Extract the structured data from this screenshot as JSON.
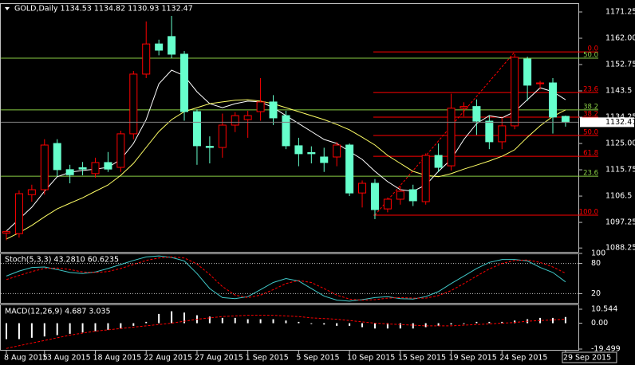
{
  "chart_data": [
    {
      "type": "candlestick",
      "title": "GOLD,Daily  1134.53 1134.82 1130.93 1132.47",
      "categories": [
        "8 Aug 2015",
        null,
        null,
        "13 Aug 2015",
        null,
        null,
        null,
        "18 Aug 2015",
        null,
        null,
        null,
        "22 Aug 2015",
        null,
        null,
        null,
        "27 Aug 2015",
        null,
        null,
        null,
        "1 Sep 2015",
        null,
        null,
        null,
        "5 Sep 2015",
        null,
        null,
        null,
        "10 Sep 2015",
        null,
        null,
        null,
        "15 Sep 2015",
        null,
        null,
        null,
        "19 Sep 2015",
        null,
        null,
        null,
        "24 Sep 2015",
        null,
        null,
        null,
        null,
        "29 Sep 2015"
      ],
      "open": [
        1093.5,
        1093.3,
        1107.0,
        1108.75,
        1125.0,
        1115.8,
        1116.5,
        1114.4,
        1118.3,
        1116.6,
        1128.4,
        1149.4,
        1160.0,
        1162.6,
        1156.4,
        1136.2,
        1124.0,
        1123.6,
        1131.45,
        1133.4,
        1136.2,
        1139.6,
        1134.8,
        1124.2,
        1121.8,
        1120.25,
        1120.25,
        1124.45,
        1107.6,
        1111.0,
        1102.0,
        1105.4,
        1108.75,
        1104.55,
        1120.8,
        1117.15,
        1137.4,
        1138.0,
        1132.85,
        1125.6,
        1131.2,
        1154.7,
        1146.0,
        1146.3,
        1134.53
      ],
      "high": [
        1094.5,
        1108.5,
        1110.5,
        1126.5,
        1126.5,
        1117.5,
        1118.5,
        1120.0,
        1122.0,
        1129.5,
        1150.5,
        1167.9,
        1161.5,
        1169.85,
        1157.5,
        1137.0,
        1127.5,
        1135.5,
        1136.0,
        1136.5,
        1148.0,
        1142.0,
        1136.5,
        1127.0,
        1124.0,
        1123.5,
        1125.5,
        1125.0,
        1112.0,
        1112.5,
        1106.0,
        1110.0,
        1110.5,
        1121.5,
        1125.0,
        1142.5,
        1139.5,
        1140.5,
        1135.0,
        1134.0,
        1156.5,
        1155.5,
        1147.0,
        1148.0,
        1134.82
      ],
      "low": [
        1091.0,
        1091.9,
        1104.5,
        1107.0,
        1113.5,
        1111.0,
        1113.8,
        1113.0,
        1115.0,
        1115.0,
        1126.5,
        1148.0,
        1156.0,
        1155.0,
        1133.0,
        1117.5,
        1118.0,
        1120.0,
        1129.0,
        1127.0,
        1133.0,
        1131.5,
        1123.0,
        1117.0,
        1118.0,
        1115.0,
        1117.0,
        1106.5,
        1102.5,
        1098.4,
        1100.8,
        1103.5,
        1103.0,
        1103.5,
        1115.0,
        1115.5,
        1134.5,
        1128.0,
        1123.0,
        1123.0,
        1130.0,
        1140.0,
        1144.0,
        1128.5,
        1130.93
      ],
      "close": [
        1094.0,
        1107.35,
        1108.75,
        1124.45,
        1115.8,
        1114.0,
        1116.0,
        1118.3,
        1116.0,
        1128.4,
        1149.4,
        1160.0,
        1157.8,
        1156.4,
        1136.2,
        1124.2,
        1123.6,
        1131.45,
        1134.8,
        1134.8,
        1139.6,
        1134.0,
        1124.2,
        1121.4,
        1121.4,
        1118.3,
        1124.45,
        1107.6,
        1111.0,
        1101.75,
        1105.4,
        1108.2,
        1104.85,
        1120.8,
        1116.6,
        1137.4,
        1138.0,
        1132.85,
        1125.6,
        1131.2,
        1155.3,
        1145.5,
        1146.3,
        1134.3,
        1132.47
      ],
      "up_color": "#ff0000",
      "down_color": "#66ffcc",
      "lines": [
        {
          "color": "#ffffff",
          "values": [
            1094.2,
            1098.4,
            1102.6,
            1108.2,
            1113.3,
            1114.9,
            1115.5,
            1116.0,
            1116.6,
            1119.4,
            1125.0,
            1133.4,
            1146.0,
            1150.8,
            1148.8,
            1143.2,
            1139.0,
            1137.6,
            1139.0,
            1139.9,
            1139.6,
            1137.6,
            1134.8,
            1132.0,
            1129.2,
            1126.4,
            1125.0,
            1122.2,
            1119.4,
            1115.2,
            1111.6,
            1108.75,
            1108.2,
            1110.4,
            1115.2,
            1119.4,
            1126.4,
            1132.0,
            1134.8,
            1134.0,
            1136.2,
            1140.4,
            1144.6,
            1143.2,
            1140.4
          ]
        },
        {
          "color": "#ffff66",
          "values": [
            1091.4,
            1093.6,
            1096.2,
            1099.2,
            1102.0,
            1104.0,
            1105.9,
            1108.2,
            1110.4,
            1113.8,
            1118.0,
            1123.6,
            1129.2,
            1133.4,
            1136.2,
            1137.6,
            1139.0,
            1139.6,
            1140.2,
            1140.4,
            1139.9,
            1139.0,
            1137.6,
            1136.2,
            1134.8,
            1133.4,
            1131.7,
            1129.8,
            1127.2,
            1124.45,
            1120.8,
            1118.0,
            1115.2,
            1113.8,
            1113.3,
            1114.4,
            1116.0,
            1117.4,
            1118.85,
            1120.5,
            1122.8,
            1127.2,
            1131.2,
            1134.5,
            1136.8
          ]
        }
      ],
      "fib_color": "#ff0000",
      "fib_levels": [
        {
          "label": "0.0",
          "value": 1157.2
        },
        {
          "label": "23.6",
          "value": 1142.9
        },
        {
          "label": "38.2",
          "value": 1134.25
        },
        {
          "label": "50.0",
          "value": 1127.8
        },
        {
          "label": "61.8",
          "value": 1120.5
        },
        {
          "label": "100.0",
          "value": 1099.8
        }
      ],
      "level_color": "#88cc44",
      "levels": [
        {
          "label": "50.0",
          "value": 1155.0
        },
        {
          "label": "38.2",
          "value": 1136.8
        },
        {
          "label": "23.6",
          "value": 1113.5
        }
      ],
      "ylim": [
        1086.9,
        1174.05
      ],
      "yticks": [
        1171.25,
        {
          "value": 1162,
          "label": "1162.00"
        },
        1152.75,
        1143.5,
        1134.25,
        {
          "value": 1125,
          "label": "1125.00"
        },
        1115.75,
        1106.5,
        1097.25,
        1088.25
      ]
    },
    {
      "type": "line",
      "title": "Stoch(5,3,3) 43.2810 60.6235",
      "ylim": [
        0,
        100
      ],
      "yticks": [
        100,
        80,
        20
      ],
      "series": [
        {
          "color": "#40c8c8",
          "dash": false,
          "values": [
            55,
            65,
            72,
            73,
            68,
            62,
            60,
            63,
            70,
            78,
            86,
            93,
            95,
            92,
            85,
            60,
            30,
            12,
            10,
            14,
            28,
            42,
            50,
            45,
            30,
            15,
            7,
            5,
            8,
            12,
            14,
            10,
            9,
            14,
            24,
            40,
            55,
            70,
            82,
            88,
            88,
            85,
            72,
            62,
            43.281
          ]
        },
        {
          "color": "#ff0000",
          "dash": true,
          "values": [
            48,
            56,
            64,
            70,
            71,
            68,
            63,
            62,
            64,
            70,
            78,
            86,
            91,
            93,
            91,
            79,
            58,
            34,
            17,
            12,
            17,
            28,
            40,
            46,
            42,
            30,
            17,
            9,
            7,
            8,
            11,
            12,
            11,
            11,
            16,
            26,
            40,
            55,
            69,
            80,
            86,
            87,
            82,
            73,
            60.6235
          ]
        }
      ]
    },
    {
      "type": "macd",
      "title": "MACD(12,26,9) 4.687 3.035",
      "ylim": [
        -19.499,
        10.544
      ],
      "yticks": [
        10.544,
        {
          "value": 0,
          "label": "0.00"
        },
        -19.499
      ],
      "series": [
        {
          "kind": "bar",
          "color": "#ffffff",
          "values": [
            -12,
            -12,
            -11,
            -10,
            -9,
            -8,
            -7,
            -6,
            -5,
            -4,
            -2,
            1,
            7,
            9,
            8,
            6,
            5,
            4,
            4,
            3,
            3,
            3,
            2,
            1,
            0,
            -1,
            -2,
            -2,
            -3,
            -4,
            -4,
            -4,
            -4,
            -3,
            -2,
            -1,
            0,
            1,
            1,
            1,
            2,
            3,
            4,
            4,
            4.687
          ]
        },
        {
          "kind": "line",
          "color": "#ff0000",
          "dash": true,
          "values": [
            -19,
            -17,
            -15,
            -13,
            -11,
            -9,
            -7.5,
            -6,
            -5,
            -4,
            -3,
            -2,
            -1,
            0,
            1.5,
            3,
            4,
            5,
            5.5,
            6,
            6,
            6,
            5.5,
            5,
            4,
            3.5,
            3,
            2,
            1,
            0,
            -0.5,
            -1,
            -1.5,
            -2,
            -2,
            -2,
            -1.5,
            -1,
            -0.5,
            0,
            0.5,
            1.5,
            2,
            2.5,
            3.035
          ]
        }
      ]
    }
  ]
}
